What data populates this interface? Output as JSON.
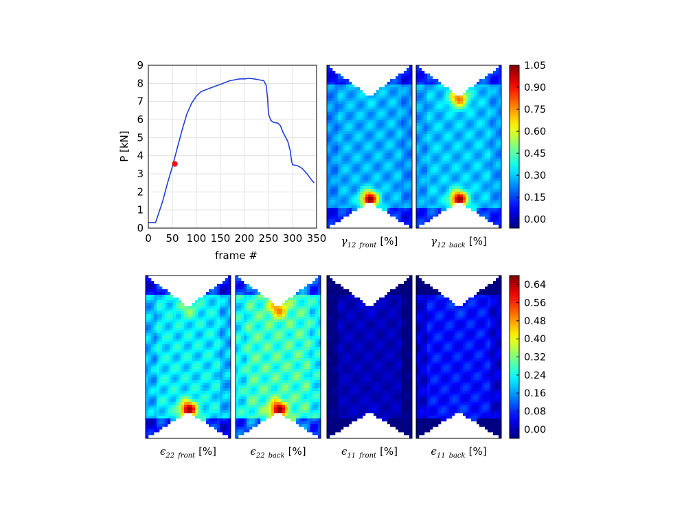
{
  "chart_data": [
    {
      "type": "line",
      "xlabel": "frame #",
      "ylabel": "P [kN]",
      "xlim": [
        0,
        350
      ],
      "ylim": [
        0,
        9
      ],
      "xticks": [
        "0",
        "50",
        "100",
        "150",
        "200",
        "250",
        "300",
        "350"
      ],
      "yticks": [
        "0",
        "1",
        "2",
        "3",
        "4",
        "5",
        "6",
        "7",
        "8",
        "9"
      ],
      "grid": true,
      "line_color": "#1f3fd6",
      "series": [
        {
          "x": [
            0,
            15,
            20,
            30,
            40,
            50,
            60,
            70,
            80,
            90,
            100,
            110,
            120,
            130,
            140,
            150,
            160,
            170,
            180,
            190,
            200,
            210,
            220,
            230,
            240,
            245,
            248,
            250,
            255,
            260,
            270,
            275,
            280,
            285,
            290,
            295,
            298,
            300,
            310,
            320,
            330,
            340,
            345
          ],
          "y": [
            0.3,
            0.3,
            0.7,
            1.5,
            2.5,
            3.4,
            4.4,
            5.4,
            6.3,
            6.9,
            7.3,
            7.55,
            7.65,
            7.75,
            7.85,
            7.95,
            8.05,
            8.15,
            8.2,
            8.25,
            8.25,
            8.28,
            8.25,
            8.2,
            8.15,
            7.9,
            7.2,
            6.3,
            5.95,
            5.85,
            5.8,
            5.65,
            5.3,
            5.05,
            4.8,
            4.3,
            3.7,
            3.5,
            3.45,
            3.3,
            3.0,
            2.65,
            2.5
          ]
        }
      ],
      "marker": {
        "x": 55,
        "y": 3.55,
        "color": "#e81818"
      }
    },
    {
      "type": "heatmap",
      "title": "γ12 front [%]",
      "symbol": "γ",
      "subscript_num": "12",
      "subscript_word": "front",
      "unit": "[%]",
      "colorbar": "shear"
    },
    {
      "type": "heatmap",
      "title": "γ12 back [%]",
      "symbol": "γ",
      "subscript_num": "12",
      "subscript_word": "back",
      "unit": "[%]",
      "colorbar": "shear"
    },
    {
      "type": "heatmap",
      "title": "ε22 front [%]",
      "symbol": "ϵ",
      "subscript_num": "22",
      "subscript_word": "front",
      "unit": "[%]",
      "colorbar": "strain"
    },
    {
      "type": "heatmap",
      "title": "ε22 back [%]",
      "symbol": "ϵ",
      "subscript_num": "22",
      "subscript_word": "back",
      "unit": "[%]",
      "colorbar": "strain"
    },
    {
      "type": "heatmap",
      "title": "ε11 front [%]",
      "symbol": "ϵ",
      "subscript_num": "11",
      "subscript_word": "front",
      "unit": "[%]",
      "colorbar": "strain"
    },
    {
      "type": "heatmap",
      "title": "ε11 back [%]",
      "symbol": "ϵ",
      "subscript_num": "11",
      "subscript_word": "back",
      "unit": "[%]",
      "colorbar": "strain"
    }
  ],
  "colorbars": {
    "shear": {
      "min": -0.06,
      "max": 1.05,
      "ticks": [
        "1.05",
        "0.90",
        "0.75",
        "0.60",
        "0.45",
        "0.30",
        "0.15",
        "0.00"
      ],
      "tick_values": [
        1.05,
        0.9,
        0.75,
        0.6,
        0.45,
        0.3,
        0.15,
        0.0
      ]
    },
    "strain": {
      "min": -0.04,
      "max": 0.68,
      "ticks": [
        "0.64",
        "0.56",
        "0.48",
        "0.40",
        "0.32",
        "0.24",
        "0.16",
        "0.08",
        "0.00"
      ],
      "tick_values": [
        0.64,
        0.56,
        0.48,
        0.4,
        0.32,
        0.24,
        0.16,
        0.08,
        0.0
      ]
    }
  },
  "colormap": "jet"
}
